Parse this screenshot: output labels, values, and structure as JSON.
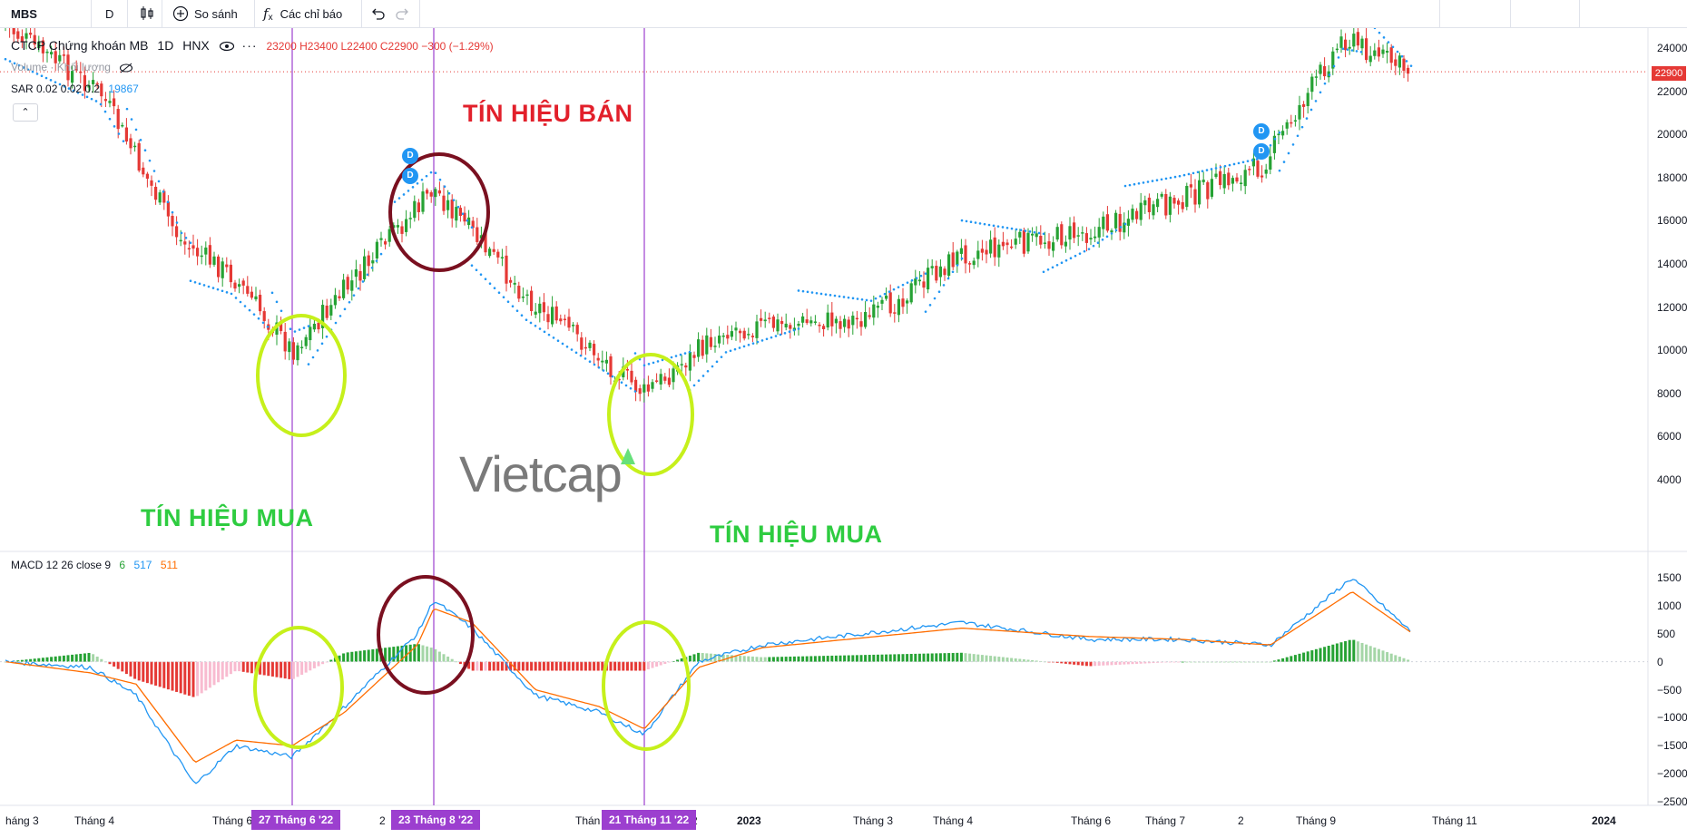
{
  "toolbar": {
    "symbol": "MBS",
    "interval": "D",
    "compare_label": "So sánh",
    "indicators_label": "Các chỉ báo"
  },
  "legend": {
    "title": "CTCP Chứng khoán MB",
    "interval": "1D",
    "exchange": "HNX",
    "ohlc": "23200 H23400 L22400 C22900 −300 (−1.29%)",
    "volume": "Volume · Khối lượng",
    "sar_label": "SAR 0.02 0.02 0.2",
    "sar_value": "19867",
    "macd_label": "MACD 12 26 close 9",
    "macd_hist": "6",
    "macd_line": "517",
    "macd_signal": "511"
  },
  "annotations": {
    "sell": "TÍN HIỆU BÁN",
    "buy1": "TÍN HIỆU MUA",
    "buy2": "TÍN HIỆU MUA",
    "brand": "Vietcap",
    "dividend_marker": "D",
    "price_tag": "22900"
  },
  "x_axis": {
    "labels": [
      "háng 3",
      "Tháng 4",
      "Tháng 6",
      "2",
      "Thán",
      "2",
      "2023",
      "Tháng 3",
      "Tháng 4",
      "Tháng 6",
      "Tháng 7",
      "2",
      "Tháng 9",
      "Tháng 11",
      "2024"
    ],
    "date_tags": [
      "27 Tháng 6 '22",
      "23 Tháng 8 '22",
      "21 Tháng 11 '22"
    ]
  },
  "chart_data": [
    {
      "type": "candlestick",
      "title": "CTCP Chứng khoán MB",
      "y_ticks": [
        24000,
        22000,
        20000,
        18000,
        16000,
        14000,
        12000,
        10000,
        8000,
        6000,
        4000
      ],
      "ylim": [
        2800,
        25500
      ],
      "last_price": 22900,
      "trend_points": [
        {
          "t": "Tháng 3",
          "price": 25000
        },
        {
          "t": "Tháng 4",
          "price": 22000
        },
        {
          "t": "Tháng 5",
          "price": 15000
        },
        {
          "t": "Tháng 6",
          "price": 13500
        },
        {
          "t": "27 Tháng 6 '22",
          "price": 10000
        },
        {
          "t": "23 Tháng 8 '22",
          "price": 17500
        },
        {
          "t": "Tháng 10",
          "price": 12500
        },
        {
          "t": "21 Tháng 11 '22",
          "price": 8000
        },
        {
          "t": "2023",
          "price": 11000
        },
        {
          "t": "Tháng 3",
          "price": 11500
        },
        {
          "t": "Tháng 4",
          "price": 14500
        },
        {
          "t": "Tháng 6",
          "price": 15500
        },
        {
          "t": "Tháng 7",
          "price": 17000
        },
        {
          "t": "Tháng 8",
          "price": 18500
        },
        {
          "t": "Tháng 9",
          "price": 24500
        },
        {
          "t": "Tháng 10",
          "price": 22900
        }
      ]
    },
    {
      "type": "line",
      "title": "MACD 12 26 close 9",
      "y_ticks": [
        1500,
        1000,
        500,
        0,
        -500,
        -1000,
        -1500,
        -2000,
        -2500
      ],
      "ylim": [
        -2500,
        1700
      ],
      "series": [
        {
          "name": "MACD",
          "values": [
            0,
            -100,
            -600,
            -2200,
            -1500,
            -1700,
            -800,
            500,
            1100,
            600,
            -600,
            -900,
            -1300,
            0,
            300,
            700,
            400,
            400,
            300,
            1500,
            517
          ]
        },
        {
          "name": "Signal",
          "values": [
            0,
            -200,
            -400,
            -1800,
            -1400,
            -1500,
            -900,
            300,
            950,
            700,
            -500,
            -800,
            -1200,
            -100,
            250,
            600,
            450,
            400,
            300,
            1250,
            511
          ]
        }
      ]
    }
  ],
  "colors": {
    "up": "#26a234",
    "down": "#e53935",
    "sar": "#2196f3",
    "macd": "#2196f3",
    "signal": "#ff6d00",
    "guide": "#9c3fcf",
    "circle_buy": "#c6f01b",
    "circle_sell": "#7a1020"
  }
}
